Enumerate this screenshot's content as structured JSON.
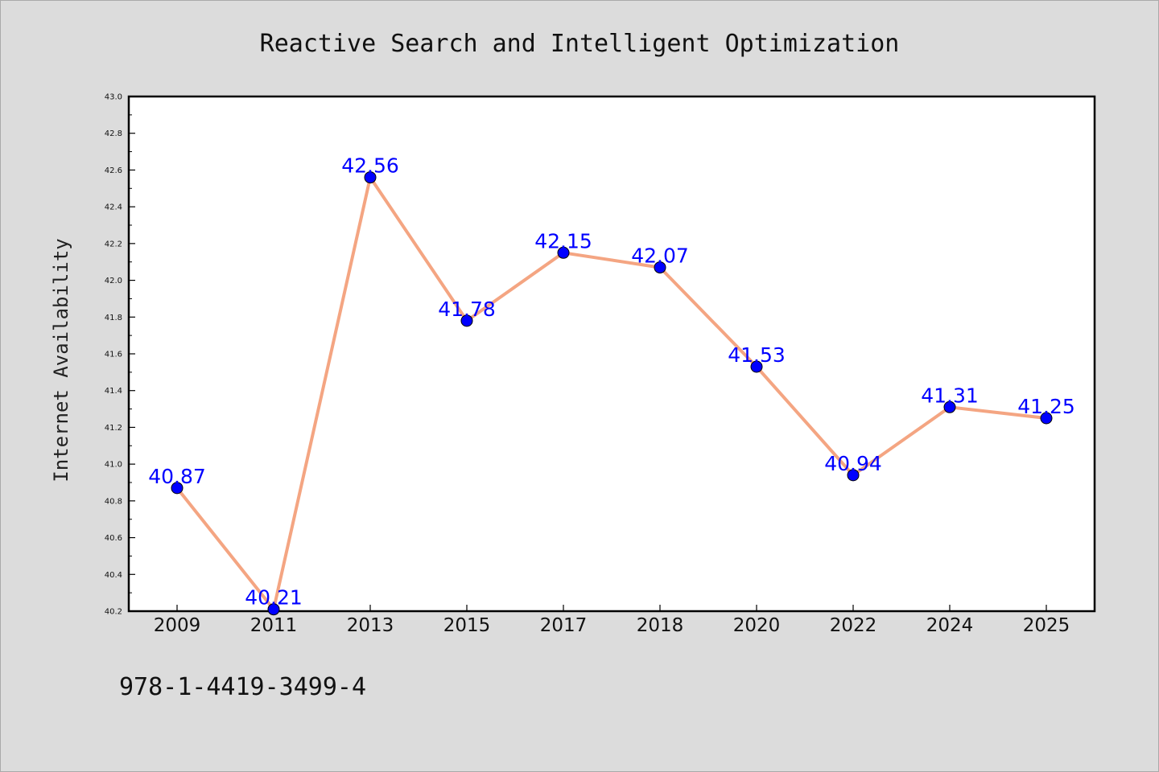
{
  "chart_data": {
    "type": "line",
    "title": "Reactive Search and Intelligent Optimization",
    "xlabel": "",
    "ylabel": "Internet Availability",
    "categories": [
      "2009",
      "2011",
      "2013",
      "2015",
      "2017",
      "2018",
      "2020",
      "2022",
      "2024",
      "2025"
    ],
    "series": [
      {
        "values": [
          40.87,
          40.21,
          42.56,
          41.78,
          42.15,
          42.07,
          41.53,
          40.94,
          41.31,
          41.25
        ],
        "line_color": "#f4a582",
        "marker_color": "#0000ff"
      }
    ],
    "data_labels": [
      "40.87",
      "40.21",
      "42.56",
      "41.78",
      "42.15",
      "42.07",
      "41.53",
      "40.94",
      "41.31",
      "41.25"
    ],
    "ylim": [
      40.2,
      43.0
    ],
    "yticks": [
      "40.2",
      "40.4",
      "40.6",
      "40.8",
      "41.0",
      "41.2",
      "41.4",
      "41.6",
      "41.8",
      "42.0",
      "42.2",
      "42.4",
      "42.6",
      "42.8",
      "43.0"
    ],
    "grid": false,
    "legend": "none",
    "label_color": "#0000ff"
  },
  "footer": {
    "text": "978-1-4419-3499-4"
  }
}
